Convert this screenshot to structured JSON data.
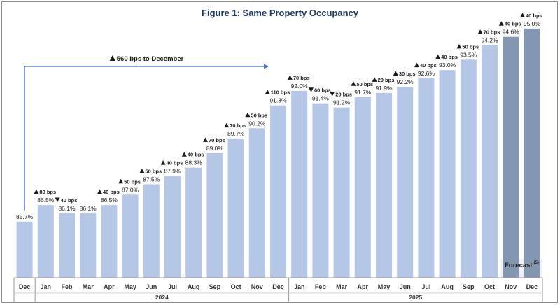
{
  "chart_data": {
    "type": "bar",
    "title": "Figure 1:  Same Property Occupancy",
    "categories": [
      "Dec",
      "Jan",
      "Feb",
      "Mar",
      "Apr",
      "May",
      "Jun",
      "Jul",
      "Aug",
      "Sep",
      "Oct",
      "Nov",
      "Dec",
      "Jan",
      "Feb",
      "Mar",
      "Apr",
      "May",
      "Jun",
      "Jul",
      "Aug",
      "Sep",
      "Oct",
      "Nov",
      "Dec"
    ],
    "values": [
      85.7,
      86.5,
      86.1,
      86.1,
      86.5,
      87.0,
      87.5,
      87.9,
      88.3,
      89.0,
      89.7,
      90.2,
      91.3,
      92.0,
      91.4,
      91.2,
      91.7,
      91.9,
      92.2,
      92.6,
      93.0,
      93.5,
      94.2,
      94.6,
      95.0
    ],
    "value_labels": [
      "85.7%",
      "86.5%",
      "86.1%",
      "86.1%",
      "86.5%",
      "87.0%",
      "87.5%",
      "87.9%",
      "88.3%",
      "89.0%",
      "89.7%",
      "90.2%",
      "91.3%",
      "92.0%",
      "91.4%",
      "91.2%",
      "91.7%",
      "91.9%",
      "92.2%",
      "92.6%",
      "93.0%",
      "93.5%",
      "94.2%",
      "94.6%",
      "95.0%"
    ],
    "changes": [
      null,
      {
        "dir": "up",
        "text": "80 bps"
      },
      {
        "dir": "down",
        "text": "40 bps"
      },
      null,
      {
        "dir": "up",
        "text": "40 bps"
      },
      {
        "dir": "up",
        "text": "50 bps"
      },
      {
        "dir": "up",
        "text": "50 bps"
      },
      {
        "dir": "up",
        "text": "40 bps"
      },
      {
        "dir": "up",
        "text": "40 bps"
      },
      {
        "dir": "up",
        "text": "70 bps"
      },
      {
        "dir": "up",
        "text": "70 bps"
      },
      {
        "dir": "up",
        "text": "50 bps"
      },
      {
        "dir": "up",
        "text": "110 bps"
      },
      {
        "dir": "up",
        "text": "70 bps"
      },
      {
        "dir": "down",
        "text": "60 bps"
      },
      {
        "dir": "down",
        "text": "20 bps"
      },
      {
        "dir": "up",
        "text": "50 bps"
      },
      {
        "dir": "up",
        "text": "20 bps"
      },
      {
        "dir": "up",
        "text": "30 bps"
      },
      {
        "dir": "up",
        "text": "40 bps"
      },
      {
        "dir": "up",
        "text": "40 bps"
      },
      {
        "dir": "up",
        "text": "50 bps"
      },
      {
        "dir": "up",
        "text": "70 bps"
      },
      {
        "dir": "up",
        "text": "40 bps"
      },
      {
        "dir": "up",
        "text": "40 bps"
      }
    ],
    "forecast": [
      false,
      false,
      false,
      false,
      false,
      false,
      false,
      false,
      false,
      false,
      false,
      false,
      false,
      false,
      false,
      false,
      false,
      false,
      false,
      false,
      false,
      false,
      false,
      true,
      true
    ],
    "year_groups": [
      {
        "label": "",
        "count": 1
      },
      {
        "label": "2024",
        "count": 12
      },
      {
        "label": "2025",
        "count": 12
      }
    ],
    "annotation": {
      "text": "560 bps to December",
      "from_index": 0,
      "to_index": 12
    },
    "forecast_label": "Forecast",
    "forecast_footnote": "(5)",
    "ylim": [
      83.0,
      95.5
    ],
    "colors": {
      "bar": "#b4c7e7",
      "forecast_bar": "#8497b0",
      "arrow": "#4472c4",
      "title": "#1f3a5f"
    }
  }
}
